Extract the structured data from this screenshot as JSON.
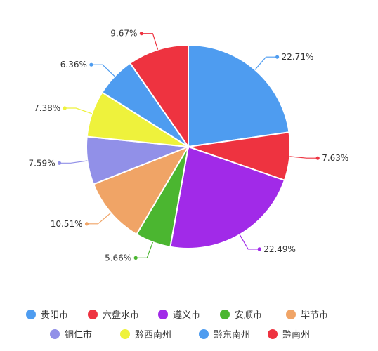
{
  "chart_data": {
    "type": "pie",
    "legend_position": "bottom",
    "slices": [
      {
        "name": "贵阳市",
        "value": 22.71,
        "label": "22.71%",
        "color": "#4e9cf0"
      },
      {
        "name": "六盘水市",
        "value": 7.63,
        "label": "7.63%",
        "color": "#ee3340"
      },
      {
        "name": "遵义市",
        "value": 22.49,
        "label": "22.49%",
        "color": "#a12ae8"
      },
      {
        "name": "安顺市",
        "value": 5.66,
        "label": "5.66%",
        "color": "#4bb630"
      },
      {
        "name": "毕节市",
        "value": 10.51,
        "label": "10.51%",
        "color": "#f0a466"
      },
      {
        "name": "铜仁市",
        "value": 7.59,
        "label": "7.59%",
        "color": "#9190e8"
      },
      {
        "name": "黔西南州",
        "value": 7.38,
        "label": "7.38%",
        "color": "#eef23c"
      },
      {
        "name": "黔东南州",
        "value": 6.36,
        "label": "6.36%",
        "color": "#4e9cf0"
      },
      {
        "name": "黔南州",
        "value": 9.67,
        "label": "9.67%",
        "color": "#ee3340"
      }
    ]
  }
}
